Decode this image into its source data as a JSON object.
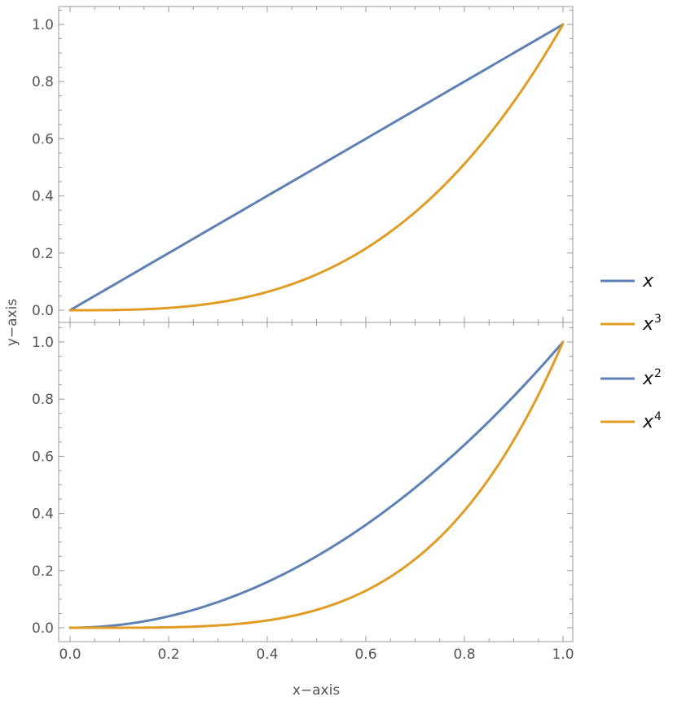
{
  "chart_data": {
    "type": "line",
    "xlabel": "x−axis",
    "ylabel": "y−axis",
    "xlim": [
      0,
      1
    ],
    "ylim": [
      0,
      1
    ],
    "x_ticks": [
      "0.0",
      "0.2",
      "0.4",
      "0.6",
      "0.8",
      "1.0"
    ],
    "y_ticks": [
      "0.0",
      "0.2",
      "0.4",
      "0.6",
      "0.8",
      "1.0"
    ],
    "grid": false,
    "legend_placement": "right",
    "colors": {
      "blue": "#5e81b5",
      "orange": "#e19c24",
      "frame": "#999999"
    },
    "panels": [
      {
        "series": [
          {
            "name": "x",
            "exponent": 1,
            "color": "#5e81b5",
            "x": [
              0,
              0.1,
              0.2,
              0.3,
              0.4,
              0.5,
              0.6,
              0.7,
              0.8,
              0.9,
              1.0
            ],
            "y": [
              0,
              0.1,
              0.2,
              0.3,
              0.4,
              0.5,
              0.6,
              0.7,
              0.8,
              0.9,
              1.0
            ]
          },
          {
            "name": "x3",
            "exponent": 3,
            "color": "#e19c24",
            "x": [
              0,
              0.1,
              0.2,
              0.3,
              0.4,
              0.5,
              0.6,
              0.7,
              0.8,
              0.9,
              1.0
            ],
            "y": [
              0,
              0.001,
              0.008,
              0.027,
              0.064,
              0.125,
              0.216,
              0.343,
              0.512,
              0.729,
              1.0
            ]
          }
        ]
      },
      {
        "series": [
          {
            "name": "x2",
            "exponent": 2,
            "color": "#5e81b5",
            "x": [
              0,
              0.1,
              0.2,
              0.3,
              0.4,
              0.5,
              0.6,
              0.7,
              0.8,
              0.9,
              1.0
            ],
            "y": [
              0,
              0.01,
              0.04,
              0.09,
              0.16,
              0.25,
              0.36,
              0.49,
              0.64,
              0.81,
              1.0
            ]
          },
          {
            "name": "x4",
            "exponent": 4,
            "color": "#e19c24",
            "x": [
              0,
              0.1,
              0.2,
              0.3,
              0.4,
              0.5,
              0.6,
              0.7,
              0.8,
              0.9,
              1.0
            ],
            "y": [
              0,
              0.0001,
              0.0016,
              0.0081,
              0.0256,
              0.0625,
              0.1296,
              0.2401,
              0.4096,
              0.6561,
              1.0
            ]
          }
        ]
      }
    ],
    "legend": [
      {
        "base": "x",
        "sup": "",
        "color": "#5e81b5"
      },
      {
        "base": "x",
        "sup": "3",
        "color": "#e19c24"
      },
      {
        "base": "x",
        "sup": "2",
        "color": "#5e81b5"
      },
      {
        "base": "x",
        "sup": "4",
        "color": "#e19c24"
      }
    ]
  }
}
